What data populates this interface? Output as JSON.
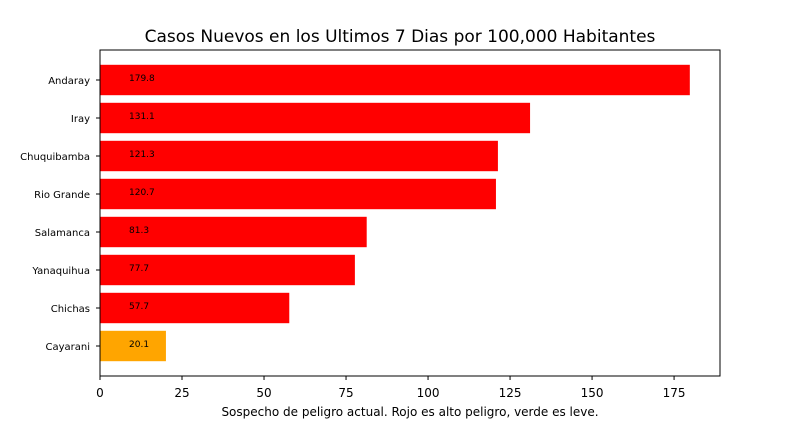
{
  "chart_data": {
    "type": "bar",
    "orientation": "horizontal",
    "title": "Casos Nuevos en los Ultimos 7 Dias por 100,000 Habitantes",
    "xlabel": "Sospecho de peligro actual. Rojo es alto peligro, verde es leve.",
    "ylabel": "",
    "xlim": [
      0,
      189
    ],
    "xticks": [
      0,
      25,
      50,
      75,
      100,
      125,
      150,
      175
    ],
    "grid": false,
    "categories": [
      "Andaray",
      "Iray",
      "Chuquibamba",
      "Rio Grande",
      "Salamanca",
      "Yanaquihua",
      "Chichas",
      "Cayarani"
    ],
    "values": [
      179.8,
      131.1,
      121.3,
      120.7,
      81.3,
      77.7,
      57.7,
      20.1
    ],
    "data_labels": [
      "179.8",
      "131.1",
      "121.3",
      "120.7",
      "81.3",
      "77.7",
      "57.7",
      "20.1"
    ],
    "bar_colors": [
      "#ff0000",
      "#ff0000",
      "#ff0000",
      "#ff0000",
      "#ff0000",
      "#ff0000",
      "#ff0000",
      "#ffa500"
    ]
  }
}
